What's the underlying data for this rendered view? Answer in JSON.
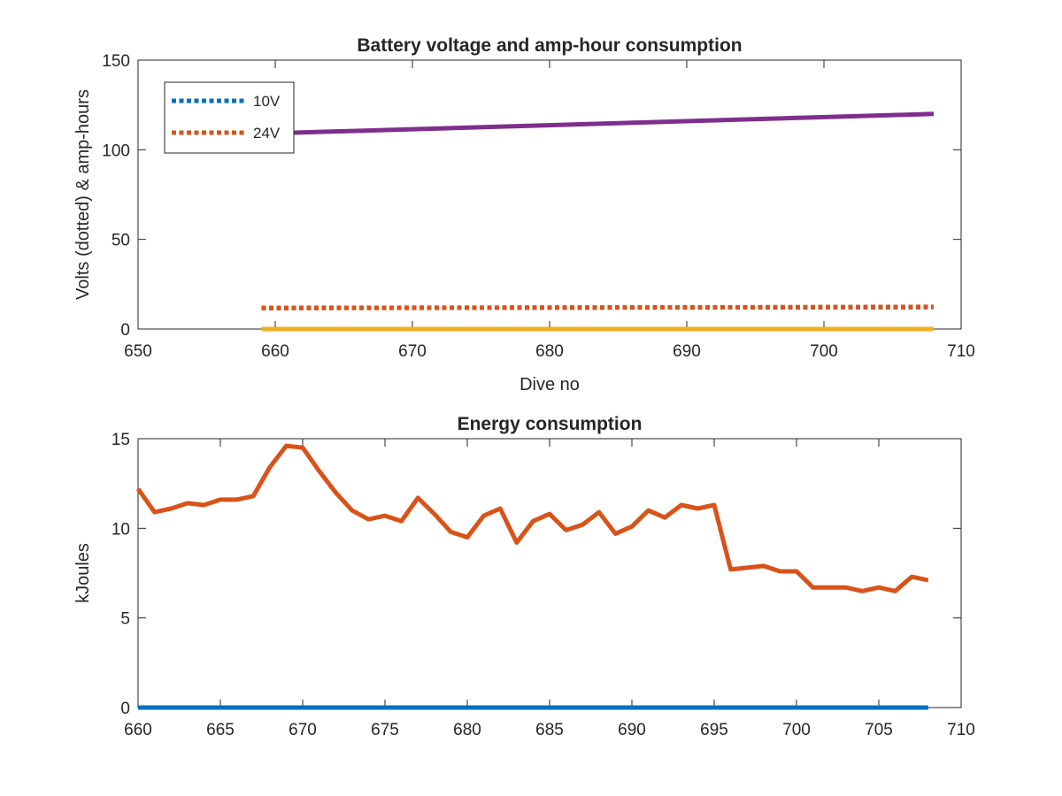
{
  "chart_data": [
    {
      "type": "line",
      "title": "Battery voltage and amp-hour consumption",
      "xlabel": "Dive no",
      "ylabel": "Volts (dotted) & amp-hours",
      "xlim": [
        650,
        710
      ],
      "ylim": [
        0,
        150
      ],
      "xticks": [
        650,
        660,
        670,
        680,
        690,
        700,
        710
      ],
      "yticks": [
        0,
        50,
        100,
        150
      ],
      "legend": {
        "position": "top-left",
        "entries": [
          "10V",
          "24V"
        ]
      },
      "series": [
        {
          "name": "10V",
          "style": "dotted",
          "color": "#0072BD",
          "x": [
            659,
            708
          ],
          "y": [
            11.8,
            12.2
          ]
        },
        {
          "name": "24V",
          "style": "dotted",
          "color": "#D95319",
          "x": [
            659,
            708
          ],
          "y": [
            11.6,
            12.4
          ]
        },
        {
          "style": "solid",
          "color": "#EDB120",
          "x": [
            659,
            708
          ],
          "y": [
            0,
            0
          ]
        },
        {
          "style": "solid",
          "color": "#7E2F8E",
          "x": [
            659,
            708
          ],
          "y": [
            109,
            120
          ]
        }
      ]
    },
    {
      "type": "line",
      "title": "Energy consumption",
      "xlabel": "",
      "ylabel": "kJoules",
      "xlim": [
        660,
        710
      ],
      "ylim": [
        0,
        15
      ],
      "xticks": [
        660,
        665,
        670,
        675,
        680,
        685,
        690,
        695,
        700,
        705,
        710
      ],
      "yticks": [
        0,
        5,
        10,
        15
      ],
      "series": [
        {
          "style": "solid",
          "color": "#0072BD",
          "x": [
            660,
            708
          ],
          "y": [
            0,
            0
          ]
        },
        {
          "style": "solid",
          "color": "#D95319",
          "x": [
            660,
            661,
            662,
            663,
            664,
            665,
            666,
            667,
            668,
            669,
            670,
            671,
            672,
            673,
            674,
            675,
            676,
            677,
            678,
            679,
            680,
            681,
            682,
            683,
            684,
            685,
            686,
            687,
            688,
            689,
            690,
            691,
            692,
            693,
            694,
            695,
            696,
            697,
            698,
            699,
            700,
            701,
            702,
            703,
            704,
            705,
            706,
            707,
            708
          ],
          "y": [
            12.2,
            10.9,
            11.1,
            11.4,
            11.3,
            11.6,
            11.6,
            11.8,
            13.4,
            14.6,
            14.5,
            13.2,
            12.0,
            11.0,
            10.5,
            10.7,
            10.4,
            11.7,
            10.8,
            9.8,
            9.5,
            10.7,
            11.1,
            9.2,
            10.4,
            10.8,
            9.9,
            10.2,
            10.9,
            9.7,
            10.1,
            11.0,
            10.6,
            11.3,
            11.1,
            11.3,
            7.7,
            7.8,
            7.9,
            7.6,
            7.6,
            6.7,
            6.7,
            6.7,
            6.5,
            6.7,
            6.5,
            7.3,
            7.1
          ]
        }
      ]
    }
  ]
}
